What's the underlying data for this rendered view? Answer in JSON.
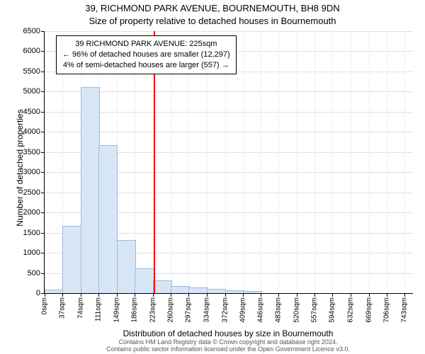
{
  "title_line1": "39, RICHMOND PARK AVENUE, BOURNEMOUTH, BH8 9DN",
  "title_line2": "Size of property relative to detached houses in Bournemouth",
  "ylabel": "Number of detached properties",
  "xlabel": "Distribution of detached houses by size in Bournemouth",
  "footer_line1": "Contains HM Land Registry data © Crown copyright and database right 2024.",
  "footer_line2": "Contains public sector information licensed under the Open Government Licence v3.0.",
  "annotation": {
    "line1": "39 RICHMOND PARK AVENUE: 225sqm",
    "line2": "← 96% of detached houses are smaller (12,297)",
    "line3": "4% of semi-detached houses are larger (557) →"
  },
  "chart": {
    "type": "histogram",
    "background_color": "#ffffff",
    "grid_color_h": "#e0e0e0",
    "grid_color_v": "#eef1f5",
    "bar_fill": "#d7e6f5",
    "bar_border": "#9fb8d6",
    "marker_color": "#ff0000",
    "marker_value": 225,
    "text_color": "#000000",
    "ylim": [
      0,
      6500
    ],
    "ytick_step": 500,
    "x_min": 0,
    "x_max": 760,
    "x_ticks": [
      0,
      37,
      74,
      111,
      149,
      186,
      223,
      260,
      297,
      334,
      372,
      409,
      446,
      483,
      520,
      557,
      594,
      632,
      669,
      706,
      743
    ],
    "x_tick_suffix": "sqm",
    "bin_starts": [
      0,
      37,
      74,
      111,
      149,
      186,
      223,
      260,
      297,
      334,
      372,
      409,
      446,
      483,
      520,
      557,
      594,
      632,
      669,
      706,
      743
    ],
    "bin_width": 37,
    "values": [
      70,
      1650,
      5100,
      3650,
      1300,
      600,
      300,
      150,
      130,
      90,
      60,
      40,
      0,
      0,
      0,
      0,
      0,
      0,
      0,
      0,
      0
    ]
  }
}
